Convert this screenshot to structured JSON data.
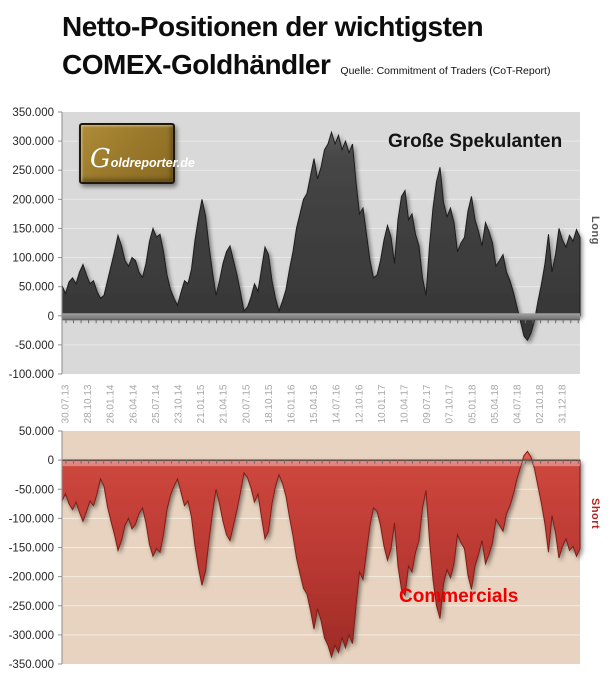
{
  "title": {
    "line1": "Netto-Positionen der wichtigsten",
    "line2": "COMEX-Goldhändler",
    "source": "Quelle: Commitment of Traders (CoT-Report)"
  },
  "logo": {
    "text": "Goldreporter.de"
  },
  "annotations": {
    "speculators_label": "Große Spekulanten",
    "commercials_label": "Commercials",
    "long_label": "Long",
    "short_label": "Short"
  },
  "colors": {
    "speculators_area": "#3f3f3f",
    "commercials_area": "#c23b32",
    "top_plot_bg": "#d9d9d9",
    "bottom_plot_bg": "#e7d3bf",
    "commercials_text": "#f00000",
    "long_text": "#595959",
    "short_text": "#b42521",
    "x_tick_text": "#a6a6a6",
    "y_tick_text": "#262626"
  },
  "chart_data": {
    "type": "area",
    "title": "Netto-Positionen der wichtigsten COMEX-Goldhändler",
    "source": "Commitment of Traders (CoT-Report)",
    "unit": "thousand contracts (net position)",
    "sampling_note": "values estimated from chart at ~biweekly steps, Jul 2013 - Feb 2019",
    "x_tick_labels": [
      "30.07.13",
      "28.10.13",
      "26.01.14",
      "26.04.14",
      "25.07.14",
      "23.10.14",
      "21.01.15",
      "21.04.15",
      "20.07.15",
      "18.10.15",
      "16.01.16",
      "15.04.16",
      "14.07.16",
      "12.10.16",
      "10.01.17",
      "10.04.17",
      "09.07.17",
      "07.10.17",
      "05.01.18",
      "05.04.18",
      "04.07.18",
      "02.10.18",
      "31.12.18"
    ],
    "grid": true,
    "legend_position": "in-plot text labels",
    "series": [
      {
        "name": "Große Spekulanten",
        "side_label": "Long",
        "color": "#3f3f3f",
        "ylim": [
          -100000,
          350000
        ],
        "y_tick_labels": [
          "350.000",
          "300.000",
          "250.000",
          "200.000",
          "150.000",
          "100.000",
          "50.000",
          "0",
          "-50.000",
          "-100.000"
        ],
        "values": [
          52,
          38,
          58,
          65,
          55,
          75,
          88,
          70,
          55,
          60,
          42,
          30,
          35,
          60,
          85,
          110,
          138,
          120,
          95,
          85,
          100,
          95,
          75,
          66,
          90,
          128,
          150,
          135,
          140,
          110,
          70,
          45,
          30,
          18,
          40,
          60,
          55,
          80,
          130,
          168,
          200,
          172,
          120,
          75,
          35,
          60,
          90,
          110,
          120,
          95,
          70,
          40,
          8,
          15,
          32,
          55,
          42,
          80,
          118,
          105,
          60,
          30,
          8,
          25,
          45,
          80,
          110,
          150,
          175,
          200,
          210,
          240,
          270,
          235,
          255,
          285,
          295,
          315,
          295,
          310,
          285,
          300,
          280,
          295,
          230,
          175,
          185,
          140,
          95,
          65,
          70,
          95,
          130,
          155,
          135,
          90,
          165,
          205,
          215,
          165,
          175,
          140,
          120,
          65,
          35,
          120,
          185,
          230,
          255,
          195,
          170,
          185,
          160,
          110,
          125,
          135,
          180,
          205,
          165,
          145,
          120,
          160,
          145,
          125,
          85,
          95,
          105,
          75,
          60,
          40,
          15,
          -10,
          -35,
          -42,
          -30,
          -8,
          25,
          55,
          90,
          140,
          75,
          105,
          150,
          130,
          118,
          138,
          128,
          148,
          135
        ]
      },
      {
        "name": "Commercials",
        "side_label": "Short",
        "color": "#c23b32",
        "ylim": [
          -350000,
          50000
        ],
        "y_tick_labels": [
          "50.000",
          "0",
          "-50.000",
          "-100.000",
          "-150.000",
          "-200.000",
          "-250.000",
          "-300.000",
          "-350.000"
        ],
        "values": [
          -70,
          -58,
          -75,
          -85,
          -72,
          -90,
          -105,
          -88,
          -70,
          -78,
          -58,
          -32,
          -45,
          -80,
          -105,
          -128,
          -155,
          -138,
          -112,
          -100,
          -118,
          -110,
          -92,
          -82,
          -108,
          -145,
          -165,
          -152,
          -158,
          -128,
          -85,
          -60,
          -45,
          -32,
          -55,
          -78,
          -70,
          -98,
          -148,
          -185,
          -215,
          -190,
          -138,
          -90,
          -50,
          -75,
          -105,
          -128,
          -138,
          -112,
          -85,
          -55,
          -22,
          -30,
          -48,
          -72,
          -58,
          -98,
          -135,
          -122,
          -75,
          -45,
          -25,
          -40,
          -62,
          -98,
          -130,
          -168,
          -195,
          -220,
          -230,
          -258,
          -290,
          -255,
          -275,
          -305,
          -318,
          -338,
          -318,
          -330,
          -305,
          -322,
          -300,
          -315,
          -250,
          -192,
          -205,
          -158,
          -112,
          -82,
          -88,
          -112,
          -148,
          -172,
          -152,
          -108,
          -182,
          -222,
          -232,
          -182,
          -192,
          -158,
          -138,
          -82,
          -52,
          -138,
          -205,
          -250,
          -272,
          -212,
          -188,
          -202,
          -178,
          -128,
          -142,
          -152,
          -198,
          -222,
          -182,
          -162,
          -138,
          -178,
          -162,
          -142,
          -102,
          -112,
          -122,
          -92,
          -78,
          -58,
          -32,
          -12,
          8,
          15,
          5,
          -15,
          -45,
          -75,
          -110,
          -158,
          -95,
          -125,
          -168,
          -148,
          -135,
          -155,
          -148,
          -165,
          -152
        ]
      }
    ]
  }
}
